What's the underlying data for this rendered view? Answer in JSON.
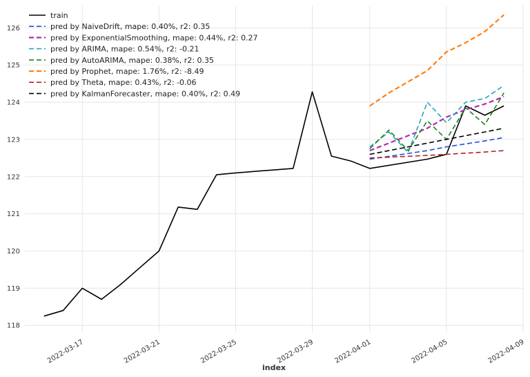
{
  "chart_data": {
    "type": "line",
    "title": "",
    "xlabel": "index",
    "ylabel": "",
    "grid": true,
    "legend_position": "top-left",
    "xlim": [
      "2022-03-14",
      "2022-04-09"
    ],
    "ylim": [
      117.8,
      126.6
    ],
    "x_ticks": [
      "2022-03-17",
      "2022-03-21",
      "2022-03-25",
      "2022-03-29",
      "2022-04-01",
      "2022-04-05",
      "2022-04-09"
    ],
    "y_ticks": [
      118,
      119,
      120,
      121,
      122,
      123,
      124,
      125,
      126
    ],
    "series": [
      {
        "name": "train",
        "color": "#000000",
        "dash": "solid",
        "width": 1.6,
        "x": [
          "2022-03-15",
          "2022-03-16",
          "2022-03-17",
          "2022-03-18",
          "2022-03-19",
          "2022-03-20",
          "2022-03-21",
          "2022-03-22",
          "2022-03-23",
          "2022-03-24",
          "2022-03-25",
          "2022-03-28",
          "2022-03-29",
          "2022-03-30",
          "2022-03-31",
          "2022-04-01",
          "2022-04-04",
          "2022-04-05",
          "2022-04-06",
          "2022-04-07",
          "2022-04-08"
        ],
        "y": [
          118.25,
          118.4,
          119.0,
          118.7,
          119.1,
          119.55,
          120.0,
          121.18,
          121.12,
          122.05,
          122.1,
          122.22,
          124.28,
          122.55,
          122.42,
          122.22,
          122.47,
          122.6,
          123.9,
          123.65,
          123.9
        ]
      },
      {
        "name": "pred by NaiveDrift, mape: 0.40%, r2: 0.35",
        "color": "#1f4fd8",
        "dash": "dashed",
        "width": 1.6,
        "x": [
          "2022-04-01",
          "2022-04-04",
          "2022-04-05",
          "2022-04-06",
          "2022-04-07",
          "2022-04-08"
        ],
        "y": [
          122.47,
          122.7,
          122.8,
          122.88,
          122.96,
          123.05
        ]
      },
      {
        "name": "pred by ExponentialSmoothing, mape: 0.44%, r2: 0.27",
        "color": "#b42ab4",
        "dash": "dashed",
        "width": 2.2,
        "x": [
          "2022-04-01",
          "2022-04-04",
          "2022-04-05",
          "2022-04-06",
          "2022-04-07",
          "2022-04-08"
        ],
        "y": [
          122.7,
          123.3,
          123.6,
          123.8,
          123.95,
          124.15
        ]
      },
      {
        "name": "pred by ARIMA, mape: 0.54%, r2: -0.21",
        "color": "#22a6b3",
        "dash": "dashed",
        "width": 1.6,
        "x": [
          "2022-04-01",
          "2022-04-02",
          "2022-04-03",
          "2022-04-04",
          "2022-04-05",
          "2022-04-06",
          "2022-04-07",
          "2022-04-08"
        ],
        "y": [
          122.8,
          123.2,
          122.65,
          124.0,
          123.45,
          124.0,
          124.1,
          124.45
        ]
      },
      {
        "name": "pred by AutoARIMA, mape: 0.38%, r2: 0.35",
        "color": "#1e7f1e",
        "dash": "dashed",
        "width": 1.6,
        "x": [
          "2022-04-01",
          "2022-04-02",
          "2022-04-03",
          "2022-04-04",
          "2022-04-05",
          "2022-04-06",
          "2022-04-07",
          "2022-04-08"
        ],
        "y": [
          122.75,
          123.25,
          122.7,
          123.5,
          123.0,
          123.85,
          123.4,
          124.25
        ]
      },
      {
        "name": "pred by Prophet, mape: 1.76%, r2: -8.49",
        "color": "#ff7f0e",
        "dash": "dashed",
        "width": 2.2,
        "x": [
          "2022-04-01",
          "2022-04-02",
          "2022-04-03",
          "2022-04-04",
          "2022-04-05",
          "2022-04-06",
          "2022-04-07",
          "2022-04-08"
        ],
        "y": [
          123.9,
          124.25,
          124.55,
          124.85,
          125.35,
          125.6,
          125.9,
          126.35
        ]
      },
      {
        "name": "pred by Theta, mape: 0.43%, r2: -0.06",
        "color": "#b22222",
        "dash": "dashed",
        "width": 1.6,
        "x": [
          "2022-04-01",
          "2022-04-04",
          "2022-04-05",
          "2022-04-06",
          "2022-04-07",
          "2022-04-08"
        ],
        "y": [
          122.5,
          122.57,
          122.6,
          122.63,
          122.66,
          122.7
        ]
      },
      {
        "name": "pred by KalmanForecaster, mape: 0.40%, r2: 0.49",
        "color": "#000000",
        "dash": "dashed",
        "width": 1.6,
        "x": [
          "2022-04-01",
          "2022-04-04",
          "2022-04-05",
          "2022-04-06",
          "2022-04-07",
          "2022-04-08"
        ],
        "y": [
          122.6,
          122.9,
          123.0,
          123.1,
          123.2,
          123.3
        ]
      }
    ]
  }
}
